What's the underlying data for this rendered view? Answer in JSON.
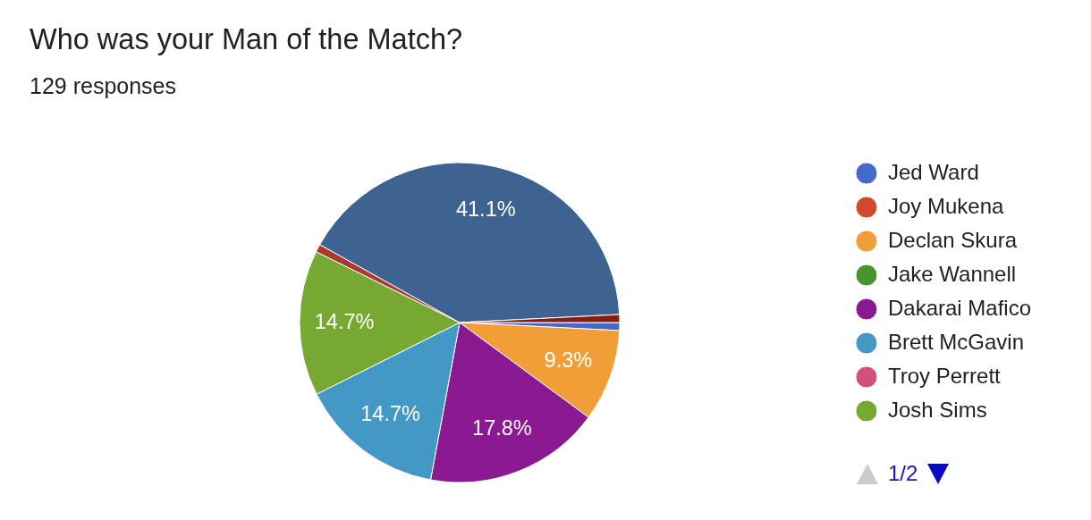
{
  "chart_data": {
    "type": "pie",
    "title": "Who was your Man of the Match?",
    "subtitle": "129 responses",
    "categories": [
      "Jed Ward",
      "Joy Mukena",
      "Declan Skura",
      "Jake Wannell",
      "Dakarai Mafico",
      "Brett McGavin",
      "Troy Perrett",
      "Josh Sims",
      null,
      null,
      null
    ],
    "values": [
      0.8,
      0,
      9.3,
      0,
      17.8,
      14.7,
      0,
      14.7,
      0.8,
      41.1,
      0.8
    ],
    "colors": [
      "#4369c9",
      "#cf4a2a",
      "#f29e38",
      "#46952f",
      "#8b1a92",
      "#4398c6",
      "#d0527a",
      "#77a932",
      "#a93a30",
      "#3e6391",
      "#861c14"
    ],
    "value_labels": [
      null,
      null,
      "9.3%",
      null,
      "17.8%",
      "14.7%",
      null,
      "14.7%",
      null,
      "41.1%",
      null
    ],
    "legend": "right",
    "annotations": [
      "1/2"
    ]
  }
}
